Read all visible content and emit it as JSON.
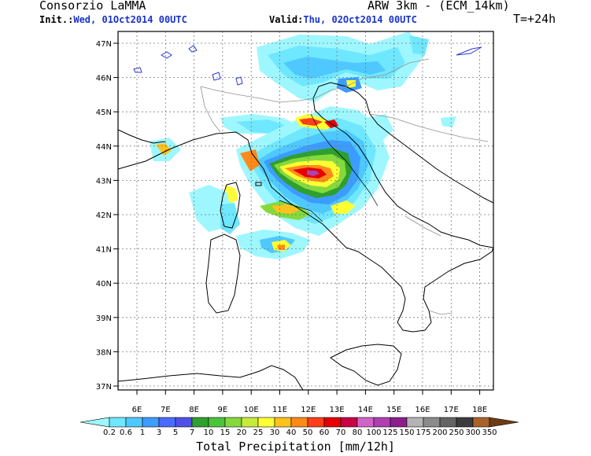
{
  "header": {
    "org": "Consorzio LaMMA",
    "model": "ARW 3km - (ECM_14km)",
    "init_label": "Init.:",
    "init_value": "Wed, 01Oct2014 00UTC",
    "valid_label": "Valid:",
    "valid_value": "Thu, 02Oct2014 00UTC",
    "step": "T=+24h"
  },
  "map": {
    "lat_labels": [
      "47N",
      "46N",
      "45N",
      "44N",
      "43N",
      "42N",
      "41N",
      "40N",
      "39N",
      "38N",
      "37N"
    ],
    "lon_labels": [
      "6E",
      "7E",
      "8E",
      "9E",
      "10E",
      "11E",
      "12E",
      "13E",
      "14E",
      "15E",
      "16E",
      "17E",
      "18E"
    ]
  },
  "colorbar": {
    "title": "Total Precipitation [mm/12h]",
    "levels": [
      "0.2",
      "0.6",
      "1",
      "3",
      "5",
      "7",
      "10",
      "15",
      "20",
      "25",
      "30",
      "40",
      "50",
      "60",
      "70",
      "80",
      "100",
      "125",
      "150",
      "175",
      "200",
      "250",
      "300",
      "350"
    ],
    "colors": [
      "#9ef7ff",
      "#6fe7ff",
      "#4fc8ff",
      "#3d9cff",
      "#4b6bff",
      "#5050e8",
      "#2ea02e",
      "#4cc43a",
      "#86d93c",
      "#c8ea3c",
      "#ffff33",
      "#ffc21c",
      "#ff8a1a",
      "#ff3d1a",
      "#e60000",
      "#c80046",
      "#d264c8",
      "#b040b0",
      "#8c1e8c",
      "#b4b4b4",
      "#8c8c8c",
      "#646464",
      "#3c3c3c",
      "#a86428",
      "#6e3c14"
    ]
  },
  "colors": {
    "accent_blue": "#1a33cc",
    "map_border": "#000000",
    "grid": "#7a7a7a"
  }
}
